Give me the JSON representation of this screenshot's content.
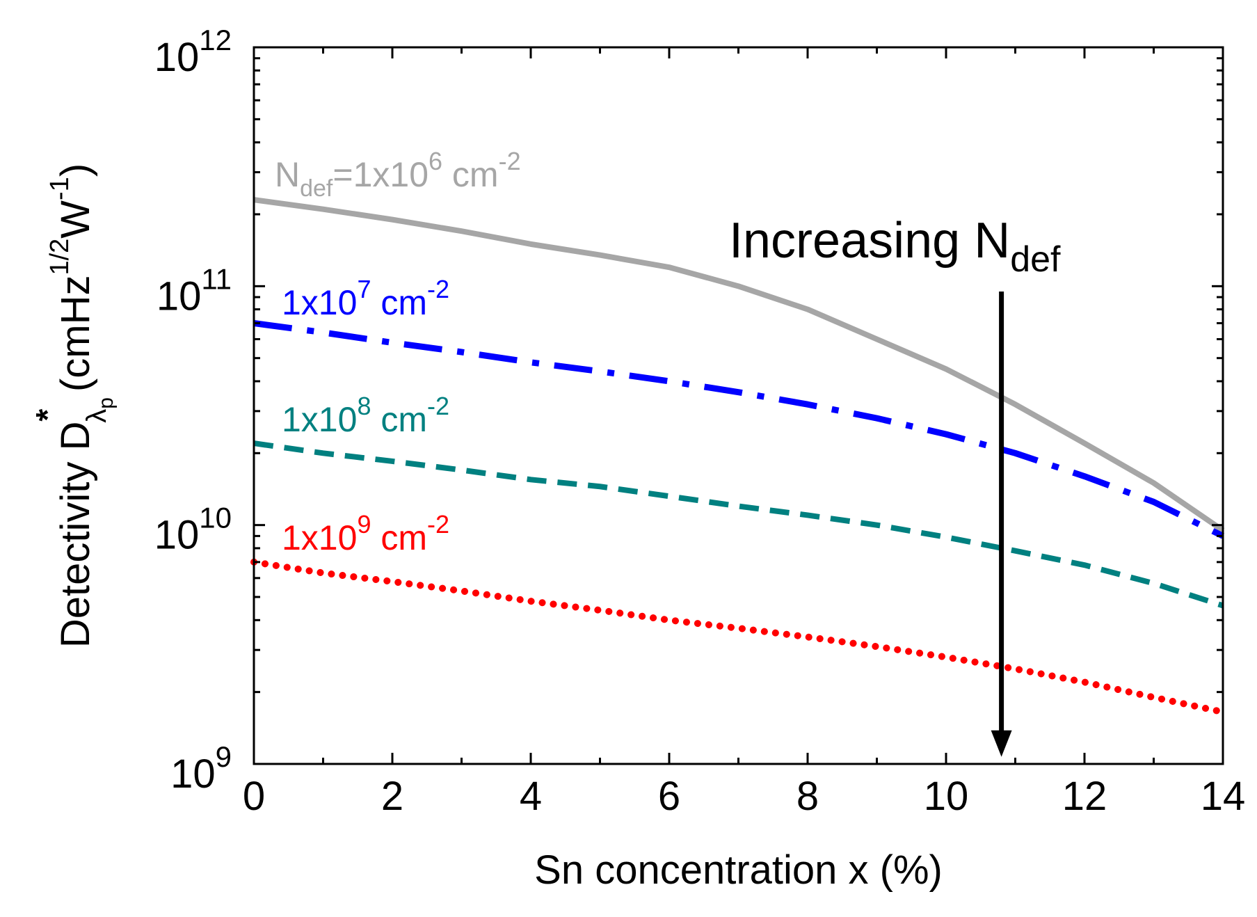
{
  "chart_data": {
    "type": "line",
    "title": "",
    "xlabel": "Sn concentration x (%)",
    "ylabel": {
      "main": "Detectivity D",
      "superscript": "*",
      "subscript_symbol": "λ",
      "subscript_sub": "p",
      "units_prefix": "(cmHz",
      "units_exp1": "1/2",
      "units_mid": "W",
      "units_exp2": "-1",
      "units_suffix": ")"
    },
    "xlim": [
      0,
      14
    ],
    "ylim": [
      1000000000,
      1000000000000
    ],
    "yscale": "log",
    "xticks": [
      {
        "value": 0,
        "label": "0"
      },
      {
        "value": 2,
        "label": "2"
      },
      {
        "value": 4,
        "label": "4"
      },
      {
        "value": 6,
        "label": "6"
      },
      {
        "value": 8,
        "label": "8"
      },
      {
        "value": 10,
        "label": "10"
      },
      {
        "value": 12,
        "label": "12"
      },
      {
        "value": 14,
        "label": "14"
      }
    ],
    "yticks": [
      {
        "value": 1000000000,
        "base": "10",
        "exp": "9"
      },
      {
        "value": 10000000000,
        "base": "10",
        "exp": "10"
      },
      {
        "value": 100000000000,
        "base": "10",
        "exp": "11"
      },
      {
        "value": 1000000000000,
        "base": "10",
        "exp": "12"
      }
    ],
    "series": [
      {
        "name": "N_def = 1x10^6 cm^-2",
        "label_parts": {
          "pre": "N",
          "sub": "def",
          "mid": "=1x10",
          "sup": "6",
          "post": " cm",
          "sup2": "-2"
        },
        "color": "#a6a6a6",
        "style": "solid",
        "x": [
          0,
          1,
          2,
          3,
          4,
          5,
          6,
          7,
          8,
          9,
          10,
          11,
          12,
          13,
          14
        ],
        "y": [
          230000000000,
          210000000000,
          190000000000,
          170000000000,
          150000000000,
          135000000000,
          120000000000,
          100000000000,
          80000000000,
          60000000000,
          45000000000,
          32000000000,
          22000000000,
          15000000000,
          9500000000
        ]
      },
      {
        "name": "1x10^7 cm^-2",
        "label_parts": {
          "pre": "",
          "sub": "",
          "mid": "1x10",
          "sup": "7",
          "post": " cm",
          "sup2": "-2"
        },
        "color": "#0000ff",
        "style": "dashdot",
        "x": [
          0,
          1,
          2,
          3,
          4,
          5,
          6,
          7,
          8,
          9,
          10,
          11,
          12,
          13,
          14
        ],
        "y": [
          70000000000,
          64000000000,
          58000000000,
          53000000000,
          48000000000,
          44000000000,
          40000000000,
          36000000000,
          32000000000,
          28000000000,
          24000000000,
          20000000000,
          16000000000,
          12500000000,
          9000000000
        ]
      },
      {
        "name": "1x10^8 cm^-2",
        "label_parts": {
          "pre": "",
          "sub": "",
          "mid": "1x10",
          "sup": "8",
          "post": " cm",
          "sup2": "-2"
        },
        "color": "#008080",
        "style": "dashed",
        "x": [
          0,
          1,
          2,
          3,
          4,
          5,
          6,
          7,
          8,
          9,
          10,
          11,
          12,
          13,
          14
        ],
        "y": [
          22000000000,
          20000000000,
          18500000000,
          17000000000,
          15500000000,
          14500000000,
          13200000000,
          12000000000,
          11000000000,
          10000000000,
          8900000000,
          7800000000,
          6800000000,
          5700000000,
          4600000000
        ]
      },
      {
        "name": "1x10^9 cm^-2",
        "label_parts": {
          "pre": "",
          "sub": "",
          "mid": "1x10",
          "sup": "9",
          "post": " cm",
          "sup2": "-2"
        },
        "color": "#ff0000",
        "style": "dotted",
        "x": [
          0,
          1,
          2,
          3,
          4,
          5,
          6,
          7,
          8,
          9,
          10,
          11,
          12,
          13,
          14
        ],
        "y": [
          7000000000,
          6300000000,
          5800000000,
          5300000000,
          4800000000,
          4400000000,
          4000000000,
          3700000000,
          3400000000,
          3100000000,
          2800000000,
          2500000000,
          2200000000,
          1900000000,
          1650000000
        ]
      }
    ],
    "annotations": [
      {
        "text": "Increasing N",
        "sub": "def",
        "arrow_x": 10.8,
        "arrow_from_y": 95000000000,
        "arrow_to_y": 1100000000
      }
    ],
    "grid": false,
    "legend": "inline labels"
  }
}
